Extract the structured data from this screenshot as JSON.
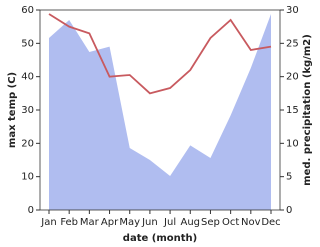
{
  "chart_data": {
    "type": "line-area",
    "x_label": "date (month)",
    "y_label": "max temp (C)",
    "y2_label": "med. precipitation (kg/m2)",
    "categories": [
      "Jan",
      "Feb",
      "Mar",
      "Apr",
      "May",
      "Jun",
      "Jul",
      "Aug",
      "Sep",
      "Oct",
      "Nov",
      "Dec"
    ],
    "series": [
      {
        "name": "max temp",
        "color": "#c85a5f",
        "axis": "y",
        "values": [
          58.8,
          55,
          53,
          40,
          40.5,
          35,
          36.6,
          42,
          51.6,
          57,
          48,
          49
        ]
      },
      {
        "name": "precipitation",
        "color": "#b0bdf0",
        "axis": "y2",
        "values": [
          25.8,
          28.5,
          23.7,
          24.5,
          9.3,
          7.5,
          5.1,
          9.7,
          7.8,
          14.2,
          21.3,
          29.4
        ]
      }
    ],
    "ylim": [
      0,
      60
    ],
    "yticks": [
      0,
      10,
      20,
      30,
      40,
      50,
      60
    ],
    "y2lim": [
      0,
      30
    ],
    "y2ticks": [
      0,
      5,
      10,
      15,
      20,
      25,
      30
    ]
  }
}
